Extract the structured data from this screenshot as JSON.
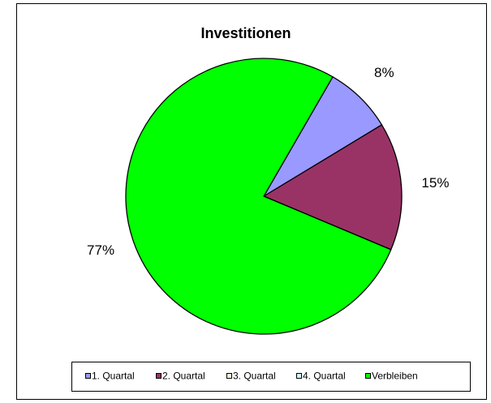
{
  "chart_data": {
    "type": "pie",
    "title": "Investitionen",
    "categories": [
      "1. Quartal",
      "2. Quartal",
      "3. Quartal",
      "4. Quartal",
      "Verbleiben"
    ],
    "values": [
      8,
      15,
      0,
      0,
      77
    ],
    "value_labels": [
      "8%",
      "15%",
      null,
      null,
      "77%"
    ],
    "colors": [
      "#9999ff",
      "#993366",
      "#ffffcc",
      "#ccffff",
      "#00ff00"
    ],
    "legend": "bottom"
  }
}
